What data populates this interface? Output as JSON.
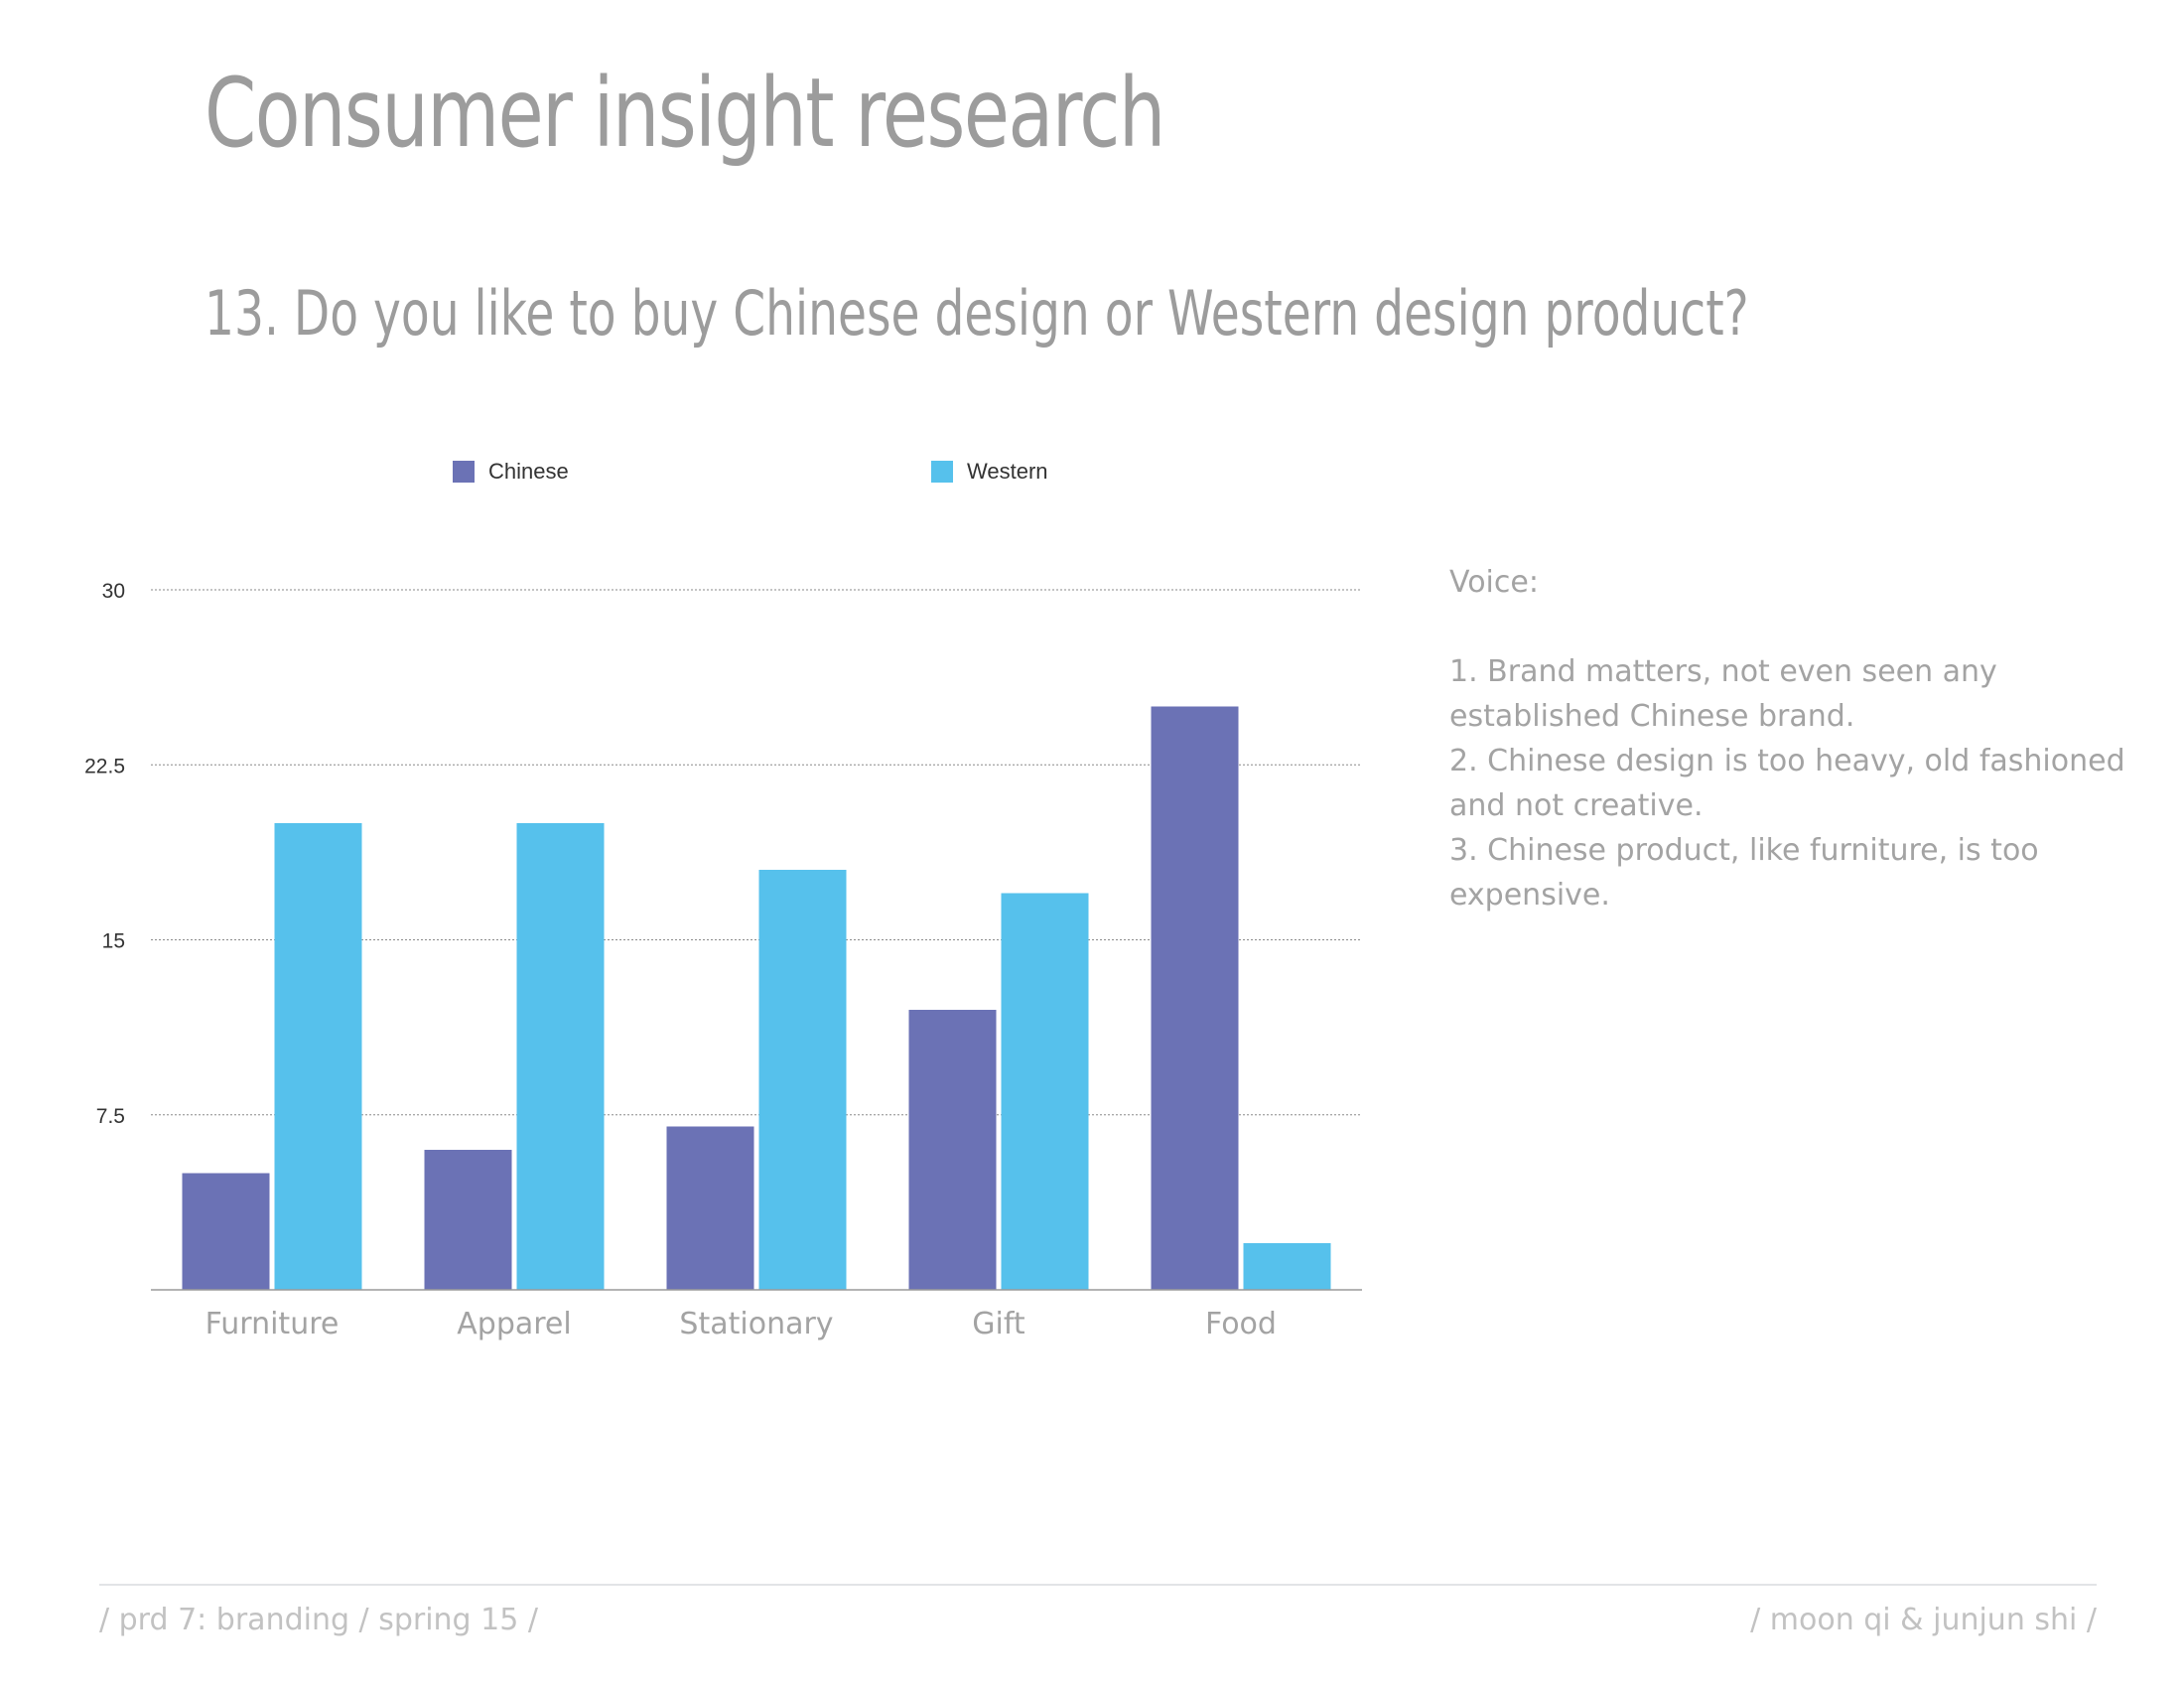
{
  "header": {
    "title": "Consumer insight research",
    "question": "13. Do you like to buy Chinese design or Western design product?"
  },
  "chart_data": {
    "type": "bar",
    "categories": [
      "Furniture",
      "Apparel",
      "Stationary",
      "Gift",
      "Food"
    ],
    "series": [
      {
        "name": "Chinese",
        "values": [
          5,
          6,
          7,
          12,
          25
        ],
        "color": "#6b72b5"
      },
      {
        "name": "Western",
        "values": [
          20,
          20,
          18,
          17,
          2
        ],
        "color": "#56c1ec"
      }
    ],
    "ylim": [
      0,
      30
    ],
    "yticks": [
      "7.5",
      "15",
      "22.5",
      "30"
    ],
    "ytick_values": [
      7.5,
      15,
      22.5,
      30
    ],
    "grid": true,
    "legend": "top",
    "title": "",
    "xlabel": "",
    "ylabel": ""
  },
  "legend": {
    "chinese_label": "Chinese",
    "western_label": "Western"
  },
  "voice": {
    "title": "Voice:",
    "points": [
      "1. Brand matters, not even seen any established Chinese brand.",
      "2. Chinese design is too heavy, old fashioned and not creative.",
      "3. Chinese product, like furniture, is too expensive."
    ]
  },
  "footer": {
    "left": "/ prd 7: branding / spring 15 /",
    "right": "/ moon qi & junjun shi /"
  },
  "colors": {
    "chinese": "#6b72b5",
    "western": "#56c1ec",
    "heading": "#9c9c9c",
    "body_text": "#a3a3a3"
  }
}
